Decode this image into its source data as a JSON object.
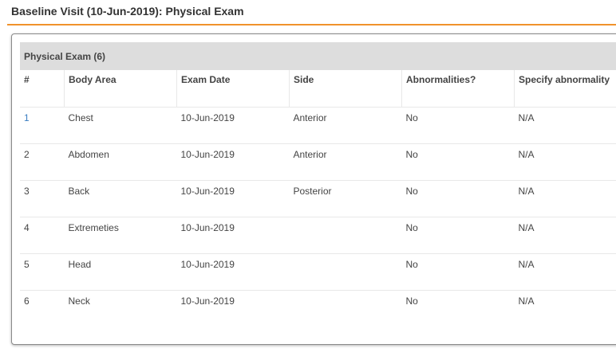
{
  "page": {
    "title": "Baseline Visit (10-Jun-2019): Physical Exam",
    "accent_color": "#f0922b"
  },
  "panel": {
    "title": "Physical Exam (6)"
  },
  "table": {
    "columns": [
      "#",
      "Body Area",
      "Exam Date",
      "Side",
      "Abnormalities?",
      "Specify abnormality"
    ],
    "rows": [
      [
        "1",
        "Chest",
        "10-Jun-2019",
        "Anterior",
        "No",
        "N/A"
      ],
      [
        "2",
        "Abdomen",
        "10-Jun-2019",
        "Anterior",
        "No",
        "N/A"
      ],
      [
        "3",
        "Back",
        "10-Jun-2019",
        "Posterior",
        "No",
        "N/A"
      ],
      [
        "4",
        "Extremeties",
        "10-Jun-2019",
        "",
        "No",
        "N/A"
      ],
      [
        "5",
        "Head",
        "10-Jun-2019",
        "",
        "No",
        "N/A"
      ],
      [
        "6",
        "Neck",
        "10-Jun-2019",
        "",
        "No",
        "N/A"
      ]
    ]
  }
}
